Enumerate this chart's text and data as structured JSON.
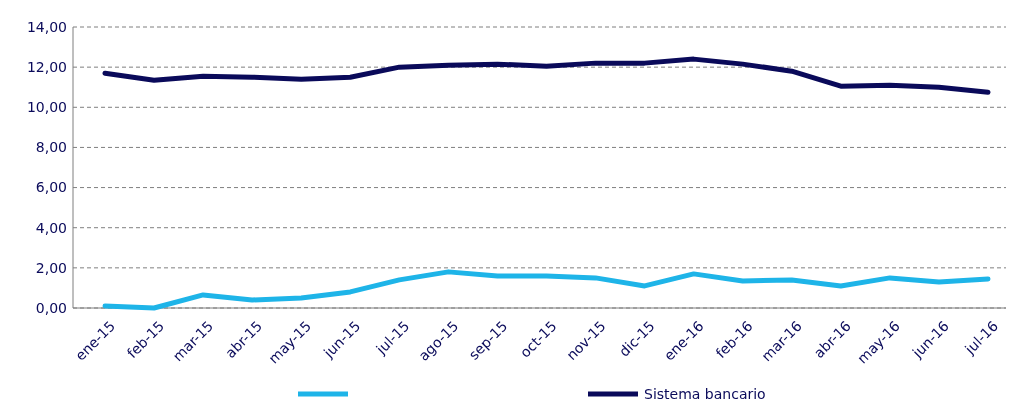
{
  "chart_data": {
    "type": "line",
    "categories": [
      "ene-15",
      "feb-15",
      "mar-15",
      "abr-15",
      "may-15",
      "jun-15",
      "jul-15",
      "ago-15",
      "sep-15",
      "oct-15",
      "nov-15",
      "dic-15",
      "ene-16",
      "feb-16",
      "mar-16",
      "abr-16",
      "may-16",
      "jun-16",
      "jul-16"
    ],
    "series": [
      {
        "color": "#1eb4e8",
        "values": [
          0.1,
          0.0,
          0.65,
          0.4,
          0.5,
          0.8,
          1.4,
          1.8,
          1.6,
          1.6,
          1.5,
          1.1,
          1.7,
          1.35,
          1.4,
          1.1,
          1.5,
          1.3,
          1.45
        ]
      },
      {
        "name": "Sistema bancario",
        "color": "#0a0a5a",
        "values": [
          11.7,
          11.35,
          11.55,
          11.5,
          11.4,
          11.5,
          12.0,
          12.1,
          12.15,
          12.05,
          12.2,
          12.2,
          12.4,
          12.15,
          11.8,
          11.05,
          11.1,
          11.0,
          10.75
        ]
      }
    ],
    "ylim": [
      0,
      14
    ],
    "yticks": [
      {
        "value": 0,
        "label": "0,00"
      },
      {
        "value": 2,
        "label": "2,00"
      },
      {
        "value": 4,
        "label": "4,00"
      },
      {
        "value": 6,
        "label": "6,00"
      },
      {
        "value": 8,
        "label": "8,00"
      },
      {
        "value": 10,
        "label": "10,00"
      },
      {
        "value": 12,
        "label": "12,00"
      },
      {
        "value": 14,
        "label": "14,00"
      }
    ],
    "grid": "y",
    "legend": "bottom",
    "line_style": "solid"
  }
}
